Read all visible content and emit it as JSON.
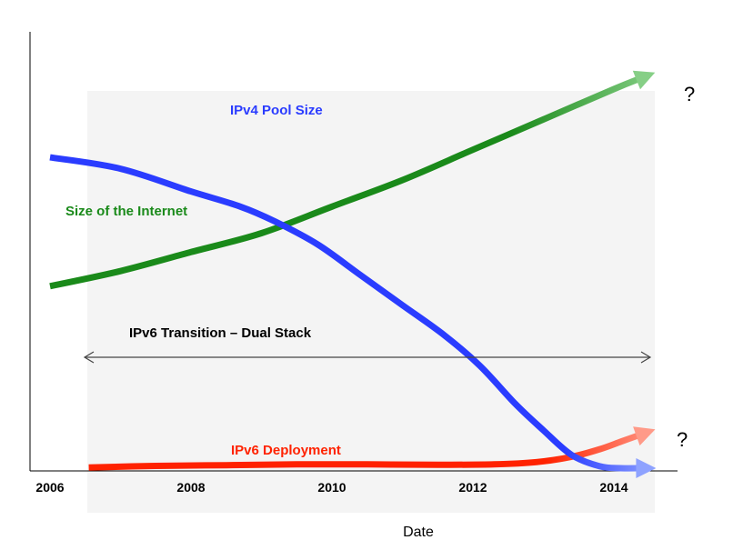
{
  "chart_data": {
    "type": "line",
    "title": "",
    "xlabel": "Date",
    "ylabel": "",
    "x_ticks": [
      "2006",
      "2008",
      "2010",
      "2012",
      "2014"
    ],
    "xlim": [
      2006,
      2014.8
    ],
    "ylim": [
      0,
      100
    ],
    "grid": false,
    "legend": "none",
    "background_band": {
      "color": "#f4f4f4"
    },
    "series": [
      {
        "name": "IPv4 Pool Size",
        "color": "#2a3cff",
        "x": [
          2006,
          2007,
          2008,
          2008.7,
          2009.2,
          2009.8,
          2010.4,
          2011.0,
          2011.6,
          2012.1,
          2012.6,
          2013.0,
          2013.4,
          2013.8,
          2014.1,
          2014.4
        ],
        "y": [
          82,
          79,
          73,
          69,
          65,
          59,
          51,
          43,
          35,
          27,
          17,
          10,
          3.5,
          0.5,
          0,
          0
        ]
      },
      {
        "name": "Size of the Internet",
        "color": "#1a8a1a",
        "x": [
          2006,
          2007,
          2008,
          2009,
          2010,
          2011,
          2012,
          2013,
          2014,
          2014.4
        ],
        "y": [
          48,
          52,
          57,
          62,
          69,
          76,
          84,
          92,
          100,
          103
        ]
      },
      {
        "name": "IPv6 Deployment",
        "color": "#ff2200",
        "x": [
          2006.55,
          2007.5,
          2008.5,
          2009.5,
          2010.5,
          2011.5,
          2012.3,
          2012.9,
          2013.4,
          2013.8,
          2014.1,
          2014.4
        ],
        "y": [
          0.2,
          0.6,
          0.8,
          1.0,
          1.0,
          0.9,
          1.0,
          1.6,
          3.0,
          5.0,
          7.0,
          9.0
        ]
      }
    ],
    "annotations": [
      {
        "text": "IPv6 Transition – Dual Stack",
        "x_range": [
          2006.55,
          2014.6
        ],
        "y": 30
      },
      {
        "text": "?",
        "near": "Size of the Internet end"
      },
      {
        "text": "?",
        "near": "IPv6 Deployment end"
      }
    ]
  }
}
